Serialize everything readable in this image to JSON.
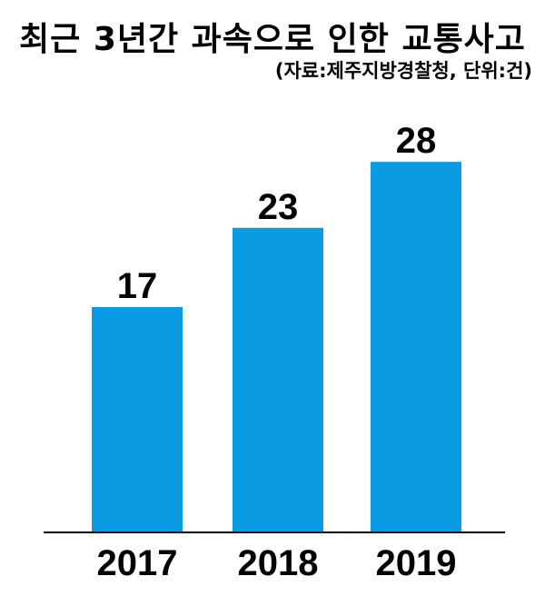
{
  "chart_data": {
    "type": "bar",
    "title": "최근 3년간 과속으로 인한 교통사고",
    "subtitle": "(자료:제주지방경찰청, 단위:건)",
    "categories": [
      "2017",
      "2018",
      "2019"
    ],
    "values": [
      17,
      23,
      28
    ],
    "ylim": [
      0,
      32
    ],
    "bar_color": "#0B9BE3",
    "grid": false,
    "legend": "none"
  }
}
